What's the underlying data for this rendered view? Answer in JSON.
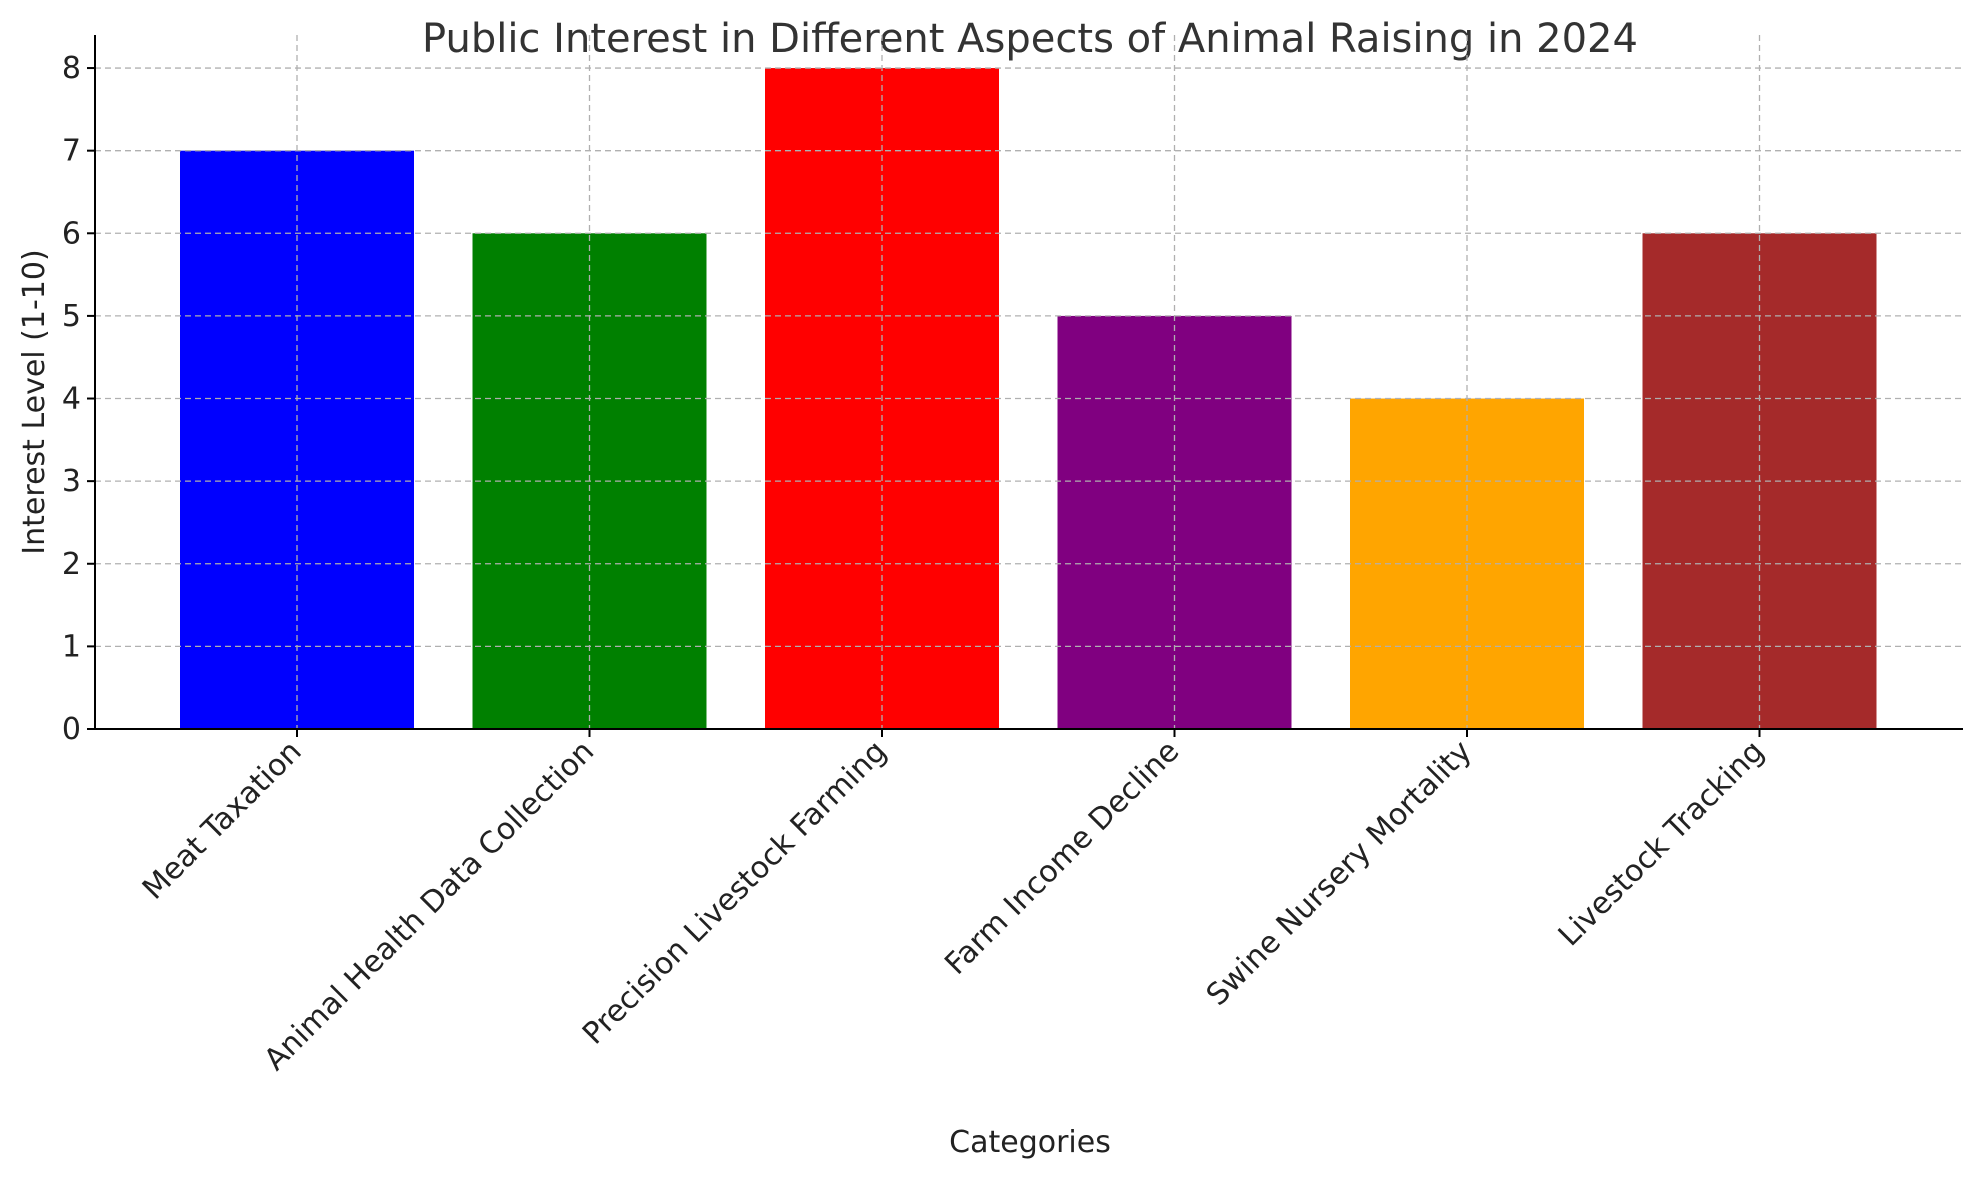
{
  "chart_data": {
    "type": "bar",
    "title": "Public Interest in Different Aspects of Animal Raising in 2024",
    "xlabel": "Categories",
    "ylabel": "Interest Level (1-10)",
    "categories": [
      "Meat Taxation",
      "Animal Health Data Collection",
      "Precision Livestock Farming",
      "Farm Income Decline",
      "Swine Nursery Mortality",
      "Livestock Tracking"
    ],
    "values": [
      7,
      6,
      8,
      5,
      4,
      6
    ],
    "colors": [
      "#0000ff",
      "#008000",
      "#ff0000",
      "#800080",
      "#ffa500",
      "#a52a2a"
    ],
    "ylim": [
      0,
      8.4
    ],
    "yticks": [
      0,
      1,
      2,
      3,
      4,
      5,
      6,
      7,
      8
    ],
    "grid": true,
    "legend": "none"
  }
}
